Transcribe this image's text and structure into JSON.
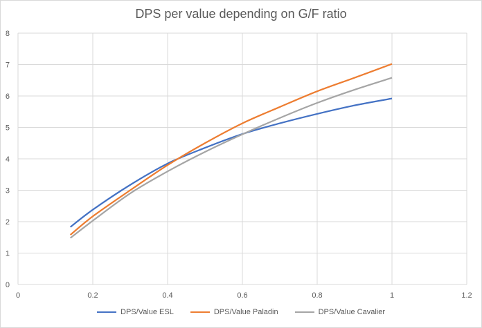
{
  "chart_data": {
    "type": "line",
    "title": "DPS per value depending on G/F ratio",
    "xlabel": "",
    "ylabel": "",
    "xlim": [
      0,
      1.2
    ],
    "ylim": [
      0,
      8
    ],
    "xticks": [
      "0",
      "0.2",
      "0.4",
      "0.6",
      "0.8",
      "1",
      "1.2"
    ],
    "yticks": [
      "0",
      "1",
      "2",
      "3",
      "4",
      "5",
      "6",
      "7",
      "8"
    ],
    "grid": true,
    "legend_position": "bottom",
    "series": [
      {
        "name": "DPS/Value ESL",
        "color": "#4472c4",
        "points": [
          [
            0.14,
            1.83
          ],
          [
            0.2,
            2.38
          ],
          [
            0.3,
            3.17
          ],
          [
            0.4,
            3.85
          ],
          [
            0.5,
            4.35
          ],
          [
            0.6,
            4.79
          ],
          [
            0.7,
            5.13
          ],
          [
            0.8,
            5.43
          ],
          [
            0.9,
            5.7
          ],
          [
            1.0,
            5.92
          ]
        ]
      },
      {
        "name": "DPS/Value Paladin",
        "color": "#ed7d31",
        "points": [
          [
            0.14,
            1.58
          ],
          [
            0.2,
            2.17
          ],
          [
            0.3,
            3.0
          ],
          [
            0.4,
            3.8
          ],
          [
            0.5,
            4.5
          ],
          [
            0.6,
            5.13
          ],
          [
            0.7,
            5.65
          ],
          [
            0.8,
            6.15
          ],
          [
            0.9,
            6.58
          ],
          [
            1.0,
            7.02
          ]
        ]
      },
      {
        "name": "DPS/Value Cavalier",
        "color": "#a5a5a5",
        "points": [
          [
            0.14,
            1.48
          ],
          [
            0.2,
            2.03
          ],
          [
            0.3,
            2.9
          ],
          [
            0.4,
            3.6
          ],
          [
            0.5,
            4.22
          ],
          [
            0.6,
            4.78
          ],
          [
            0.7,
            5.3
          ],
          [
            0.8,
            5.78
          ],
          [
            0.9,
            6.2
          ],
          [
            1.0,
            6.58
          ]
        ]
      }
    ]
  }
}
